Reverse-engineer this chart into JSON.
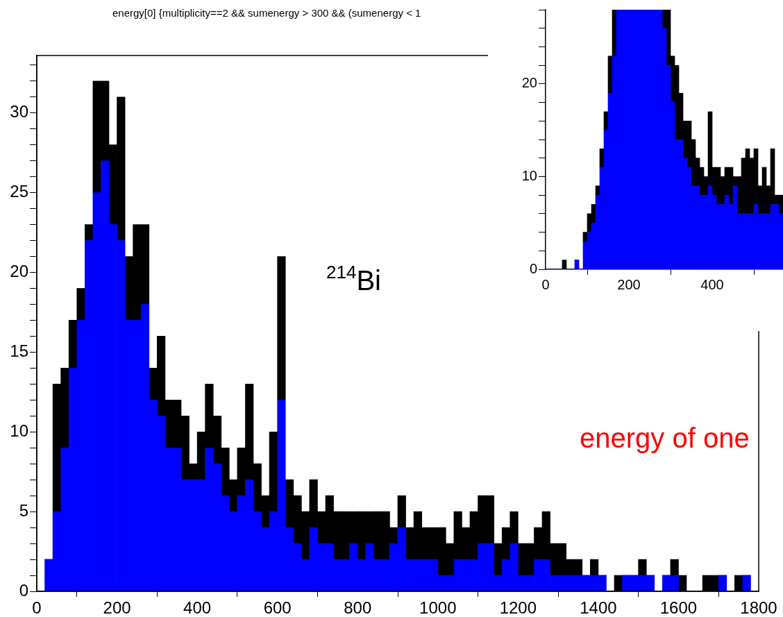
{
  "chart_data": [
    {
      "type": "bar",
      "title": "energy[0] {multiplicity==2 && sumenergy > 300 && (sumenergy < 1",
      "annotations": [
        "$^{214}$Bi",
        "energy of one"
      ],
      "stacked": true,
      "x": [
        10,
        30,
        50,
        70,
        90,
        110,
        130,
        150,
        170,
        190,
        210,
        230,
        250,
        270,
        290,
        310,
        330,
        350,
        370,
        390,
        410,
        430,
        450,
        470,
        490,
        510,
        530,
        550,
        570,
        590,
        610,
        630,
        650,
        670,
        690,
        710,
        730,
        750,
        770,
        790,
        810,
        830,
        850,
        870,
        890,
        910,
        930,
        950,
        970,
        990,
        1010,
        1030,
        1050,
        1070,
        1090,
        1110,
        1130,
        1150,
        1170,
        1190,
        1210,
        1230,
        1250,
        1270,
        1290,
        1310,
        1330,
        1350,
        1370,
        1390,
        1410,
        1430,
        1450,
        1470,
        1490,
        1510,
        1530,
        1550,
        1570,
        1590,
        1610,
        1630,
        1650,
        1670,
        1690,
        1710,
        1730,
        1750,
        1770,
        1790
      ],
      "series": [
        {
          "color": "#0000ff",
          "values": [
            0,
            2,
            5,
            9,
            14,
            17,
            22,
            25,
            27,
            23,
            22,
            17,
            17,
            18,
            12,
            11,
            9,
            9,
            7,
            7,
            7,
            9,
            8,
            6,
            5,
            6,
            7,
            5,
            4,
            5,
            12,
            4,
            3,
            2,
            4,
            3,
            3,
            2,
            2,
            3,
            2,
            3,
            2,
            2,
            3,
            4,
            2,
            2,
            2,
            2,
            1,
            1,
            2,
            2,
            2,
            3,
            3,
            1,
            2,
            3,
            1,
            1,
            2,
            2,
            1,
            1,
            1,
            1,
            1,
            1,
            1,
            0,
            0,
            1,
            1,
            1,
            1,
            0,
            1,
            1,
            0,
            0,
            0,
            0,
            0,
            1,
            0,
            0,
            1,
            0
          ]
        },
        {
          "color": "#000000",
          "values": [
            0,
            0,
            8,
            5,
            3,
            2,
            1,
            7,
            5,
            5,
            9,
            4,
            6,
            5,
            2,
            5,
            3,
            3,
            4,
            1,
            3,
            4,
            3,
            3,
            2,
            3,
            6,
            3,
            2,
            5,
            9,
            3,
            3,
            3,
            3,
            2,
            3,
            3,
            3,
            2,
            3,
            2,
            3,
            3,
            1,
            2,
            2,
            3,
            2,
            2,
            3,
            2,
            3,
            2,
            3,
            3,
            3,
            2,
            2,
            2,
            2,
            2,
            2,
            3,
            2,
            2,
            1,
            1,
            0,
            1,
            0,
            0,
            1,
            0,
            0,
            1,
            0,
            0,
            0,
            1,
            1,
            0,
            0,
            1,
            1,
            0,
            0,
            1,
            0,
            0
          ]
        }
      ],
      "xlim": [
        0,
        1800
      ],
      "xticks": [
        0,
        200,
        400,
        600,
        800,
        1000,
        1200,
        1400,
        1600,
        1800
      ],
      "ylim": [
        0,
        33.6
      ],
      "yticks": [
        0,
        {
          "value": 1,
          "label": null
        },
        {
          "value": 2,
          "label": null
        },
        {
          "value": 3,
          "label": null
        },
        {
          "value": 4,
          "label": null
        },
        5,
        {
          "value": 6,
          "label": null
        },
        {
          "value": 7,
          "label": null
        },
        {
          "value": 8,
          "label": null
        },
        {
          "value": 9,
          "label": null
        },
        10,
        {
          "value": 11,
          "label": null
        },
        {
          "value": 12,
          "label": null
        },
        {
          "value": 13,
          "label": null
        },
        {
          "value": 14,
          "label": null
        },
        15,
        {
          "value": 16,
          "label": null
        },
        {
          "value": 17,
          "label": null
        },
        {
          "value": 18,
          "label": null
        },
        {
          "value": 19,
          "label": null
        },
        20,
        {
          "value": 21,
          "label": null
        },
        {
          "value": 22,
          "label": null
        },
        {
          "value": 23,
          "label": null
        },
        {
          "value": 24,
          "label": null
        },
        25,
        {
          "value": 26,
          "label": null
        },
        {
          "value": 27,
          "label": null
        },
        {
          "value": 28,
          "label": null
        },
        {
          "value": 29,
          "label": null
        },
        30,
        {
          "value": 31,
          "label": null
        },
        {
          "value": 32,
          "label": null
        },
        {
          "value": 33,
          "label": null
        }
      ]
    },
    {
      "type": "bar",
      "stacked": true,
      "x": [
        5,
        15,
        25,
        35,
        45,
        55,
        65,
        75,
        85,
        95,
        105,
        115,
        125,
        135,
        145,
        155,
        165,
        175,
        185,
        195,
        205,
        215,
        225,
        235,
        245,
        255,
        265,
        275,
        285,
        295,
        305,
        315,
        325,
        335,
        345,
        355,
        365,
        375,
        385,
        395,
        405,
        415,
        425,
        435,
        445,
        455,
        465,
        475,
        485,
        495,
        505,
        515,
        525,
        535,
        545,
        555,
        565
      ],
      "series": [
        {
          "color": "#0000ff",
          "values": [
            0,
            0,
            0,
            0,
            0,
            0,
            0,
            1,
            0,
            3,
            4,
            5,
            8,
            11,
            15,
            19,
            23,
            28,
            28,
            28,
            28,
            28,
            28,
            28,
            28,
            28,
            28,
            28,
            26,
            22,
            18,
            14,
            14,
            12,
            11,
            9,
            9,
            8,
            8,
            9,
            8,
            7,
            7,
            8,
            7,
            9,
            6,
            6,
            6,
            6,
            7,
            6,
            6,
            6,
            7,
            7,
            6
          ]
        },
        {
          "color": "#000000",
          "values": [
            0,
            0,
            0,
            0,
            1,
            0,
            0,
            0,
            0,
            1,
            2,
            2,
            1,
            2,
            2,
            4,
            5,
            0,
            0,
            0,
            0,
            0,
            0,
            0,
            0,
            0,
            0,
            0,
            2,
            6,
            5,
            8,
            5,
            4,
            5,
            5,
            3,
            3,
            2,
            8,
            3,
            4,
            3,
            3,
            4,
            1,
            4,
            6,
            7,
            6,
            6,
            3,
            5,
            3,
            6,
            1,
            2
          ]
        }
      ],
      "xlim": [
        0,
        570
      ],
      "xticks": [
        0,
        200,
        400
      ],
      "ylim": [
        0,
        28
      ],
      "yticks": [
        0,
        {
          "value": 2,
          "label": null
        },
        {
          "value": 4,
          "label": null
        },
        {
          "value": 6,
          "label": null
        },
        {
          "value": 8,
          "label": null
        },
        10,
        {
          "value": 12,
          "label": null
        },
        {
          "value": 14,
          "label": null
        },
        {
          "value": 16,
          "label": null
        },
        {
          "value": 18,
          "label": null
        },
        20,
        {
          "value": 22,
          "label": null
        },
        {
          "value": 24,
          "label": null
        },
        {
          "value": 26,
          "label": null
        },
        {
          "value": 28,
          "label": null
        }
      ]
    }
  ]
}
